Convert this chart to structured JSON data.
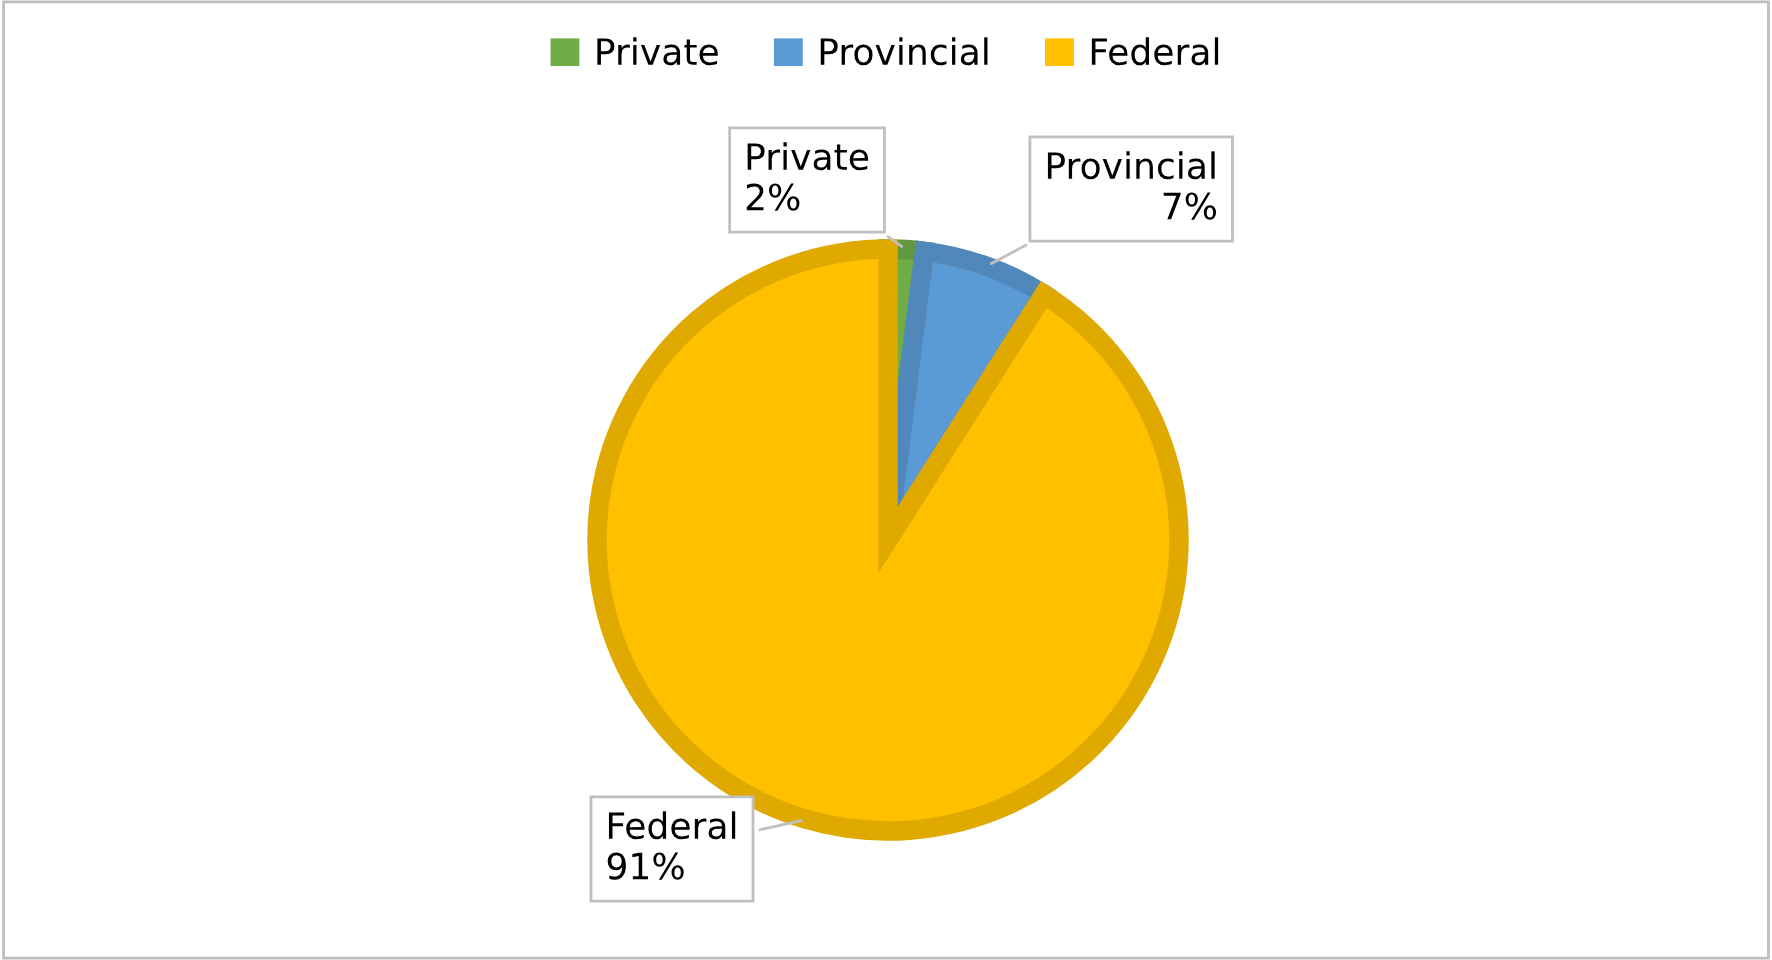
{
  "chart_data": {
    "type": "pie",
    "categories": [
      "Private",
      "Provincial",
      "Federal"
    ],
    "values": [
      2,
      7,
      91
    ],
    "colors": [
      "#70ad47",
      "#5b9bd5",
      "#ffc000"
    ],
    "value_labels": [
      "2%",
      "7%",
      "91%"
    ],
    "data_labels": true,
    "legend": "top"
  }
}
